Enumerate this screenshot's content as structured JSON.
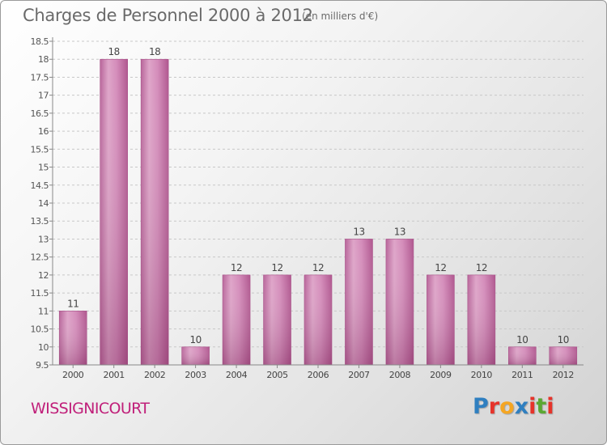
{
  "header": {
    "title": "Charges de Personnel 2000 à 2012",
    "unit": "(en milliers d'€)"
  },
  "footer": {
    "commune": "WISSIGNICOURT",
    "logo_letters": [
      "P",
      "r",
      "o",
      "x",
      "i",
      "t",
      "i"
    ],
    "logo_colors": [
      "#2f7fc0",
      "#e6332a",
      "#f5a623",
      "#2f7fc0",
      "#e6332a",
      "#5aa832",
      "#e6332a"
    ]
  },
  "chart_data": {
    "type": "bar",
    "categories": [
      "2000",
      "2001",
      "2002",
      "2003",
      "2004",
      "2005",
      "2006",
      "2007",
      "2008",
      "2009",
      "2010",
      "2011",
      "2012"
    ],
    "values": [
      11,
      18,
      18,
      10,
      12,
      12,
      12,
      13,
      13,
      12,
      12,
      10,
      10
    ],
    "data_labels": [
      "11",
      "18",
      "18",
      "10",
      "12",
      "12",
      "12",
      "13",
      "13",
      "12",
      "12",
      "10",
      "10"
    ],
    "title": "Charges de Personnel 2000 à 2012",
    "ylim": [
      9.5,
      18.5
    ],
    "yticks": [
      "9.5",
      "10",
      "10.5",
      "11",
      "11.5",
      "12",
      "12.5",
      "13",
      "13.5",
      "14",
      "14.5",
      "15",
      "15.5",
      "16",
      "16.5",
      "17",
      "17.5",
      "18",
      "18.5"
    ],
    "grid": true,
    "bar_color": "#d080b0"
  }
}
